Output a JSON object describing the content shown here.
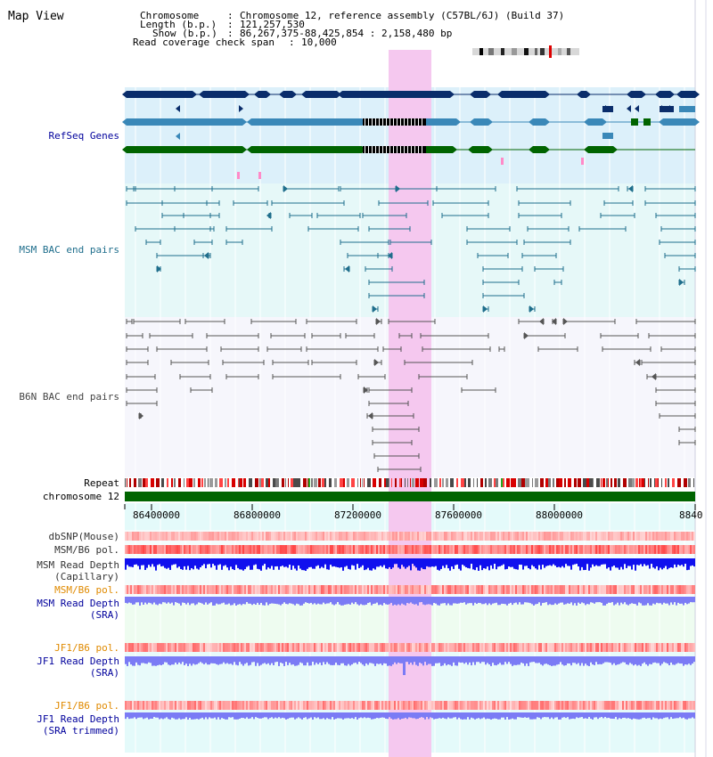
{
  "title": "Map View",
  "info": {
    "chromosome_label": "Chromosome",
    "chromosome_value": "Chromosome 12, reference assembly (C57BL/6J) (Build 37)",
    "length_label": "Length (b.p.)",
    "length_value": "121,257,530",
    "show_label": "Show (b.p.)",
    "show_value": "86,267,375-88,425,854 : 2,158,480 bp",
    "span_label": "Read coverage check span",
    "span_value": "10,000"
  },
  "tracks": {
    "refseq": "RefSeq Genes",
    "msm_bac": "MSM BAC end pairs",
    "b6n_bac": "B6N BAC end pairs",
    "repeat": "Repeat",
    "chromosome": "chromosome 12",
    "dbsnp": "dbSNP(Mouse)",
    "msm_b6_pol_1": "MSM/B6 pol.",
    "msm_depth_cap_1": "MSM Read Depth",
    "msm_depth_cap_2": "(Capillary)",
    "msm_b6_pol_2": "MSM/B6 pol.",
    "msm_depth_sra_1": "MSM Read Depth",
    "msm_depth_sra_2": "(SRA)",
    "jf1_b6_pol_1": "JF1/B6 pol.",
    "jf1_depth_sra_1": "JF1 Read Depth",
    "jf1_depth_sra_2": "(SRA)",
    "jf1_b6_pol_2": "JF1/B6 pol.",
    "jf1_depth_trim_1": "JF1 Read Depth",
    "jf1_depth_trim_2": "(SRA trimmed)"
  },
  "axis": {
    "ticks": [
      "86400000",
      "86800000",
      "87200000",
      "87600000",
      "88000000",
      "8840"
    ]
  },
  "colors": {
    "refseq_dark": "#0a2d6b",
    "refseq_mid": "#3a88b8",
    "refseq_green": "#006400",
    "msm_bac": "#1f6e8c",
    "b6n_bac": "#555555",
    "highlight": "#f5c8ef",
    "depth_blue": "#1010ee",
    "depth_lavender": "#7b7bf5",
    "label_blue": "#00009c",
    "label_orange": "#e08a00",
    "label_teal": "#1f6e8c"
  }
}
